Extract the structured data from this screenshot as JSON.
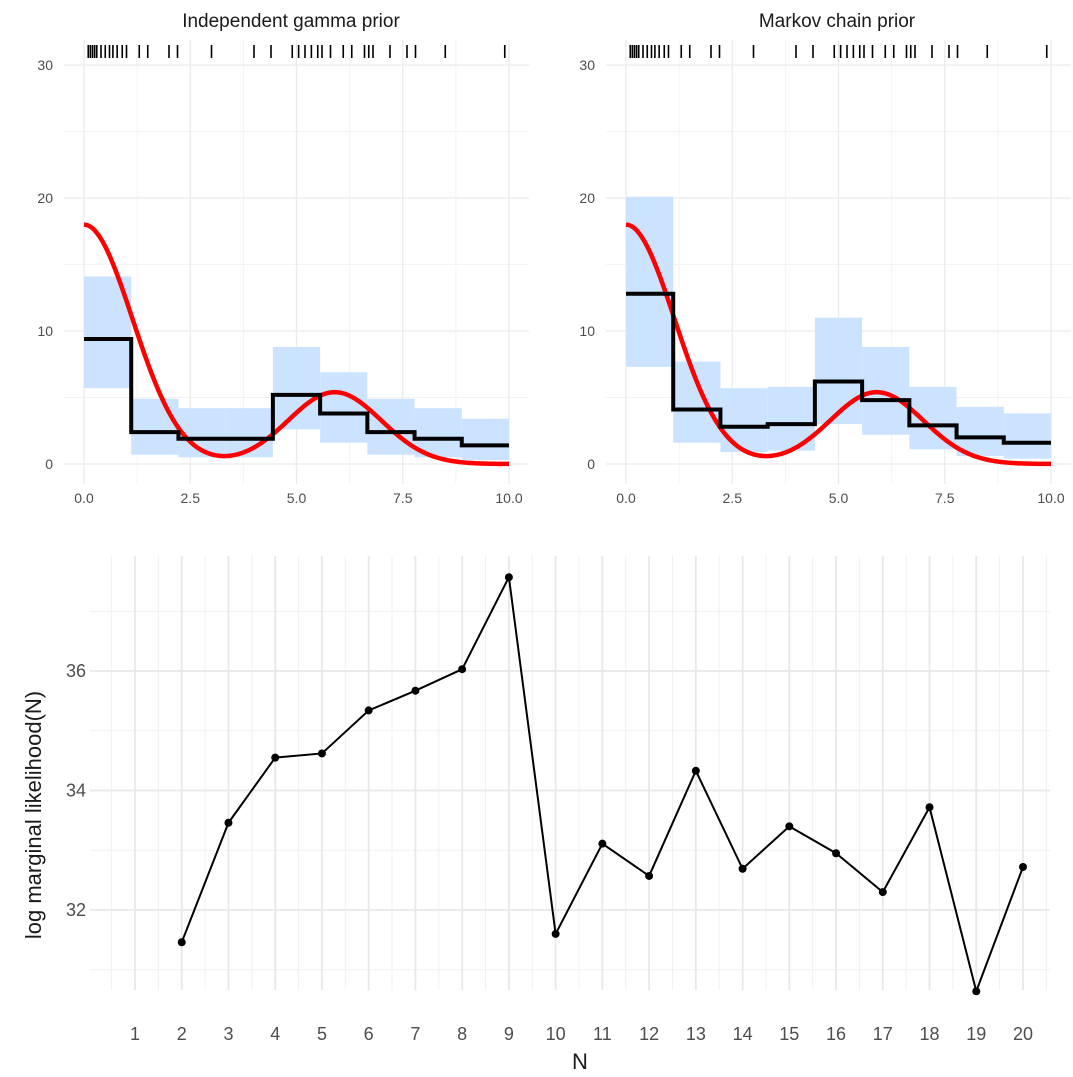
{
  "chart_data": [
    {
      "type": "step",
      "title": "Independent gamma prior",
      "xlim": [
        0,
        10
      ],
      "ylim": [
        0,
        30
      ],
      "x_ticks": [
        0,
        2.5,
        5,
        7.5,
        10
      ],
      "x_tick_labels": [
        "0.0",
        "2.5",
        "5.0",
        "7.5",
        "10.0"
      ],
      "y_ticks": [
        0,
        10,
        20,
        30
      ],
      "y_tick_labels": [
        "0",
        "10",
        "20",
        "30"
      ],
      "grid": true,
      "bins": [
        {
          "x0": 0.0,
          "x1": 1.111,
          "estimate": 9.4,
          "lower": 5.7,
          "upper": 14.1
        },
        {
          "x0": 1.111,
          "x1": 2.222,
          "estimate": 2.4,
          "lower": 0.7,
          "upper": 4.9
        },
        {
          "x0": 2.222,
          "x1": 3.333,
          "estimate": 1.9,
          "lower": 0.5,
          "upper": 4.2
        },
        {
          "x0": 3.333,
          "x1": 4.444,
          "estimate": 1.9,
          "lower": 0.5,
          "upper": 4.2
        },
        {
          "x0": 4.444,
          "x1": 5.556,
          "estimate": 5.2,
          "lower": 2.6,
          "upper": 8.8
        },
        {
          "x0": 5.556,
          "x1": 6.667,
          "estimate": 3.8,
          "lower": 1.6,
          "upper": 6.9
        },
        {
          "x0": 6.667,
          "x1": 7.778,
          "estimate": 2.4,
          "lower": 0.7,
          "upper": 4.9
        },
        {
          "x0": 7.778,
          "x1": 8.889,
          "estimate": 1.9,
          "lower": 0.5,
          "upper": 4.2
        },
        {
          "x0": 8.889,
          "x1": 10.0,
          "estimate": 1.4,
          "lower": 0.3,
          "upper": 3.4
        }
      ],
      "rug": [
        0.1,
        0.15,
        0.2,
        0.25,
        0.3,
        0.4,
        0.5,
        0.6,
        0.68,
        0.78,
        0.9,
        1.0,
        1.3,
        1.5,
        2.0,
        2.2,
        3.0,
        4.0,
        4.4,
        4.9,
        5.05,
        5.2,
        5.35,
        5.5,
        5.6,
        5.8,
        6.1,
        6.3,
        6.6,
        6.7,
        6.8,
        7.2,
        7.6,
        7.8,
        8.5,
        9.9
      ]
    },
    {
      "type": "step",
      "title": "Markov chain prior",
      "xlim": [
        0,
        10
      ],
      "ylim": [
        0,
        30
      ],
      "x_ticks": [
        0,
        2.5,
        5,
        7.5,
        10
      ],
      "x_tick_labels": [
        "0.0",
        "2.5",
        "5.0",
        "7.5",
        "10.0"
      ],
      "y_ticks": [
        0,
        10,
        20,
        30
      ],
      "y_tick_labels": [
        "0",
        "10",
        "20",
        "30"
      ],
      "grid": true,
      "bins": [
        {
          "x0": 0.0,
          "x1": 1.111,
          "estimate": 12.8,
          "lower": 7.3,
          "upper": 20.1
        },
        {
          "x0": 1.111,
          "x1": 2.222,
          "estimate": 4.1,
          "lower": 1.6,
          "upper": 7.7
        },
        {
          "x0": 2.222,
          "x1": 3.333,
          "estimate": 2.8,
          "lower": 0.9,
          "upper": 5.7
        },
        {
          "x0": 3.333,
          "x1": 4.444,
          "estimate": 3.0,
          "lower": 1.0,
          "upper": 5.8
        },
        {
          "x0": 4.444,
          "x1": 5.556,
          "estimate": 6.2,
          "lower": 3.0,
          "upper": 11.0
        },
        {
          "x0": 5.556,
          "x1": 6.667,
          "estimate": 4.8,
          "lower": 2.2,
          "upper": 8.8
        },
        {
          "x0": 6.667,
          "x1": 7.778,
          "estimate": 2.9,
          "lower": 1.1,
          "upper": 5.8
        },
        {
          "x0": 7.778,
          "x1": 8.889,
          "estimate": 2.0,
          "lower": 0.6,
          "upper": 4.3
        },
        {
          "x0": 8.889,
          "x1": 10.0,
          "estimate": 1.6,
          "lower": 0.4,
          "upper": 3.8
        }
      ],
      "rug": [
        0.1,
        0.15,
        0.2,
        0.25,
        0.3,
        0.4,
        0.5,
        0.6,
        0.68,
        0.78,
        0.9,
        1.0,
        1.3,
        1.5,
        2.0,
        2.2,
        3.0,
        4.0,
        4.4,
        4.9,
        5.05,
        5.2,
        5.35,
        5.5,
        5.6,
        5.8,
        6.1,
        6.3,
        6.6,
        6.7,
        6.8,
        7.2,
        7.6,
        7.8,
        8.5,
        9.9
      ]
    },
    {
      "type": "line",
      "title": "",
      "xlabel": "N",
      "ylabel": "log marginal likelihood(N)",
      "xlim": [
        0.5,
        20.5
      ],
      "ylim": [
        30.2,
        37.9
      ],
      "x_ticks": [
        1,
        2,
        3,
        4,
        5,
        6,
        7,
        8,
        9,
        10,
        11,
        12,
        13,
        14,
        15,
        16,
        17,
        18,
        19,
        20
      ],
      "x_tick_labels": [
        "1",
        "2",
        "3",
        "4",
        "5",
        "6",
        "7",
        "8",
        "9",
        "10",
        "11",
        "12",
        "13",
        "14",
        "15",
        "16",
        "17",
        "18",
        "19",
        "20"
      ],
      "y_ticks": [
        32,
        34,
        36
      ],
      "y_tick_labels": [
        "32",
        "34",
        "36"
      ],
      "grid": true,
      "x": [
        2,
        3,
        4,
        5,
        6,
        7,
        8,
        9,
        10,
        11,
        12,
        13,
        14,
        15,
        16,
        17,
        18,
        19,
        20
      ],
      "y": [
        31.46,
        33.46,
        34.55,
        34.62,
        35.34,
        35.67,
        36.03,
        37.57,
        31.6,
        33.11,
        32.57,
        34.33,
        32.69,
        33.4,
        32.95,
        32.3,
        33.72,
        30.64,
        32.72
      ]
    }
  ],
  "colors": {
    "band": "#cce3ff",
    "estimate": "#000000",
    "true_density": "#ff0000",
    "line": "#000000"
  }
}
